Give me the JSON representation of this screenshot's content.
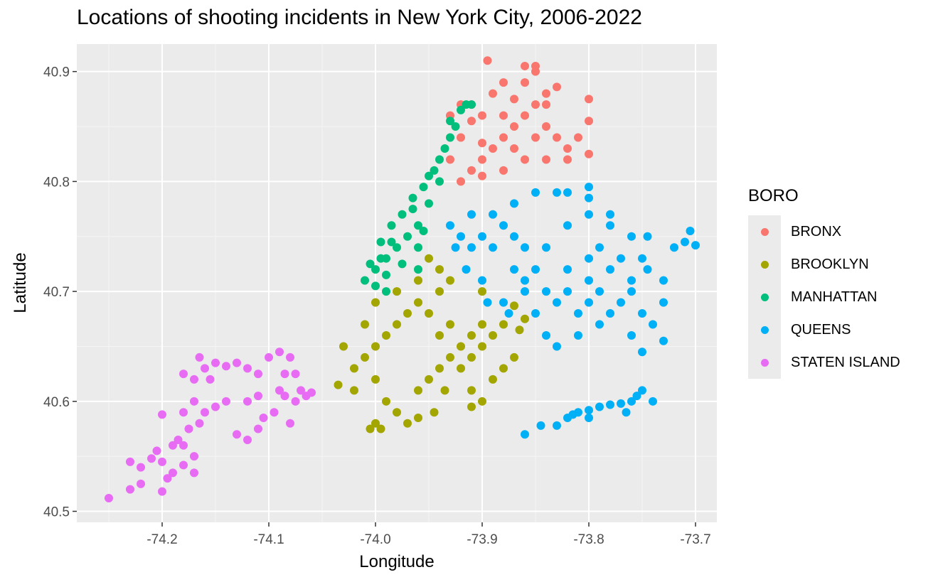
{
  "chart_data": {
    "type": "scatter",
    "title": "Locations of shooting incidents in New York City, 2006-2022",
    "xlabel": "Longitude",
    "ylabel": "Latitude",
    "xlim": [
      -74.28,
      -73.68
    ],
    "ylim": [
      40.49,
      40.925
    ],
    "x_ticks": [
      -74.2,
      -74.1,
      -74.0,
      -73.9,
      -73.8,
      -73.7
    ],
    "x_tick_labels": [
      "-74.2",
      "-74.1",
      "-74.0",
      "-73.9",
      "-73.8",
      "-73.7"
    ],
    "y_ticks": [
      40.5,
      40.6,
      40.7,
      40.8,
      40.9
    ],
    "y_tick_labels": [
      "40.5",
      "40.6",
      "40.7",
      "40.8",
      "40.9"
    ],
    "grid": true,
    "legend_title": "BORO",
    "legend_position": "right",
    "series": [
      {
        "name": "BRONX",
        "color": "#F8766D",
        "points": [
          [
            -73.91,
            40.81
          ],
          [
            -73.9,
            40.82
          ],
          [
            -73.89,
            40.83
          ],
          [
            -73.88,
            40.84
          ],
          [
            -73.87,
            40.85
          ],
          [
            -73.86,
            40.86
          ],
          [
            -73.85,
            40.87
          ],
          [
            -73.84,
            40.88
          ],
          [
            -73.85,
            40.9
          ],
          [
            -73.86,
            40.89
          ],
          [
            -73.9,
            40.86
          ],
          [
            -73.92,
            40.84
          ],
          [
            -73.93,
            40.82
          ],
          [
            -73.91,
            40.87
          ],
          [
            -73.89,
            40.88
          ],
          [
            -73.88,
            40.89
          ],
          [
            -73.84,
            40.85
          ],
          [
            -73.83,
            40.84
          ],
          [
            -73.82,
            40.83
          ],
          [
            -73.86,
            40.82
          ],
          [
            -73.88,
            40.81
          ],
          [
            -73.92,
            40.8
          ],
          [
            -73.9,
            40.805
          ],
          [
            -73.87,
            40.83
          ],
          [
            -73.85,
            40.84
          ],
          [
            -73.84,
            40.87
          ],
          [
            -73.86,
            40.905
          ],
          [
            -73.85,
            40.905
          ],
          [
            -73.895,
            40.91
          ],
          [
            -73.88,
            40.86
          ],
          [
            -73.91,
            40.855
          ],
          [
            -73.92,
            40.87
          ],
          [
            -73.93,
            40.86
          ],
          [
            -73.8,
            40.875
          ],
          [
            -73.8,
            40.855
          ],
          [
            -73.83,
            40.886
          ],
          [
            -73.81,
            40.84
          ],
          [
            -73.8,
            40.825
          ],
          [
            -73.82,
            40.82
          ],
          [
            -73.84,
            40.82
          ],
          [
            -73.87,
            40.875
          ],
          [
            -73.9,
            40.835
          ]
        ]
      },
      {
        "name": "BROOKLYN",
        "color": "#A3A500",
        "points": [
          [
            -73.95,
            40.68
          ],
          [
            -73.94,
            40.66
          ],
          [
            -73.93,
            40.67
          ],
          [
            -73.92,
            40.65
          ],
          [
            -73.91,
            40.66
          ],
          [
            -73.9,
            40.67
          ],
          [
            -73.89,
            40.66
          ],
          [
            -73.88,
            40.67
          ],
          [
            -73.96,
            40.69
          ],
          [
            -73.97,
            40.68
          ],
          [
            -73.98,
            40.67
          ],
          [
            -73.99,
            40.66
          ],
          [
            -74.0,
            40.65
          ],
          [
            -74.01,
            40.64
          ],
          [
            -74.02,
            40.63
          ],
          [
            -74.0,
            40.62
          ],
          [
            -73.99,
            40.6
          ],
          [
            -73.98,
            40.59
          ],
          [
            -73.97,
            40.58
          ],
          [
            -74.0,
            40.58
          ],
          [
            -73.96,
            40.61
          ],
          [
            -73.95,
            40.62
          ],
          [
            -73.94,
            40.63
          ],
          [
            -73.93,
            40.64
          ],
          [
            -73.92,
            40.63
          ],
          [
            -73.91,
            40.64
          ],
          [
            -73.9,
            40.65
          ],
          [
            -73.95,
            40.73
          ],
          [
            -73.94,
            40.72
          ],
          [
            -73.96,
            40.71
          ],
          [
            -73.98,
            40.7
          ],
          [
            -74.0,
            40.69
          ],
          [
            -74.01,
            40.67
          ],
          [
            -74.03,
            40.65
          ],
          [
            -74.035,
            40.615
          ],
          [
            -74.02,
            40.61
          ],
          [
            -74.005,
            40.575
          ],
          [
            -73.995,
            40.575
          ],
          [
            -73.96,
            40.585
          ],
          [
            -73.945,
            40.59
          ],
          [
            -73.935,
            40.61
          ],
          [
            -73.91,
            40.61
          ],
          [
            -73.89,
            40.62
          ],
          [
            -73.88,
            40.63
          ],
          [
            -73.87,
            40.64
          ],
          [
            -73.865,
            40.665
          ],
          [
            -73.86,
            40.675
          ],
          [
            -73.87,
            40.687
          ],
          [
            -73.9,
            40.7
          ],
          [
            -73.94,
            40.7
          ],
          [
            -73.93,
            40.71
          ],
          [
            -73.9,
            40.6
          ],
          [
            -73.91,
            40.595
          ]
        ]
      },
      {
        "name": "MANHATTAN",
        "color": "#00BF7D",
        "points": [
          [
            -74.01,
            40.71
          ],
          [
            -74.0,
            40.72
          ],
          [
            -73.99,
            40.73
          ],
          [
            -73.98,
            40.74
          ],
          [
            -73.97,
            40.75
          ],
          [
            -73.96,
            40.76
          ],
          [
            -73.95,
            40.78
          ],
          [
            -73.94,
            40.8
          ],
          [
            -73.945,
            40.81
          ],
          [
            -73.94,
            40.82
          ],
          [
            -73.935,
            40.83
          ],
          [
            -73.93,
            40.84
          ],
          [
            -73.925,
            40.85
          ],
          [
            -73.92,
            40.865
          ],
          [
            -73.91,
            40.87
          ],
          [
            -74.005,
            40.725
          ],
          [
            -73.995,
            40.745
          ],
          [
            -73.985,
            40.76
          ],
          [
            -73.975,
            40.77
          ],
          [
            -73.965,
            40.785
          ],
          [
            -73.955,
            40.795
          ],
          [
            -73.95,
            40.805
          ],
          [
            -73.93,
            40.855
          ],
          [
            -73.915,
            40.87
          ],
          [
            -74.0,
            40.705
          ],
          [
            -73.99,
            40.715
          ],
          [
            -73.975,
            40.725
          ],
          [
            -73.96,
            40.74
          ],
          [
            -73.955,
            40.755
          ],
          [
            -73.965,
            40.775
          ],
          [
            -73.985,
            40.745
          ],
          [
            -73.995,
            40.73
          ],
          [
            -73.99,
            40.7
          ],
          [
            -73.96,
            40.72
          ]
        ]
      },
      {
        "name": "QUEENS",
        "color": "#00B0F6",
        "points": [
          [
            -73.93,
            40.76
          ],
          [
            -73.92,
            40.75
          ],
          [
            -73.91,
            40.74
          ],
          [
            -73.9,
            40.75
          ],
          [
            -73.89,
            40.74
          ],
          [
            -73.88,
            40.76
          ],
          [
            -73.87,
            40.75
          ],
          [
            -73.86,
            40.74
          ],
          [
            -73.85,
            40.72
          ],
          [
            -73.84,
            40.7
          ],
          [
            -73.83,
            40.69
          ],
          [
            -73.82,
            40.7
          ],
          [
            -73.81,
            40.68
          ],
          [
            -73.8,
            40.69
          ],
          [
            -73.79,
            40.7
          ],
          [
            -73.78,
            40.68
          ],
          [
            -73.77,
            40.69
          ],
          [
            -73.76,
            40.7
          ],
          [
            -73.75,
            40.68
          ],
          [
            -73.74,
            40.67
          ],
          [
            -73.73,
            40.69
          ],
          [
            -73.73,
            40.71
          ],
          [
            -73.745,
            40.72
          ],
          [
            -73.76,
            40.71
          ],
          [
            -73.78,
            40.72
          ],
          [
            -73.8,
            40.71
          ],
          [
            -73.82,
            40.72
          ],
          [
            -73.84,
            40.74
          ],
          [
            -73.82,
            40.76
          ],
          [
            -73.8,
            40.77
          ],
          [
            -73.78,
            40.76
          ],
          [
            -73.76,
            40.75
          ],
          [
            -73.75,
            40.73
          ],
          [
            -73.83,
            40.79
          ],
          [
            -73.82,
            40.79
          ],
          [
            -73.8,
            40.795
          ],
          [
            -73.8,
            40.785
          ],
          [
            -73.85,
            40.79
          ],
          [
            -73.87,
            40.78
          ],
          [
            -73.89,
            40.77
          ],
          [
            -73.91,
            40.77
          ],
          [
            -73.88,
            40.69
          ],
          [
            -73.86,
            40.7
          ],
          [
            -73.85,
            40.68
          ],
          [
            -73.84,
            40.66
          ],
          [
            -73.83,
            40.65
          ],
          [
            -73.81,
            40.66
          ],
          [
            -73.79,
            40.67
          ],
          [
            -73.76,
            40.66
          ],
          [
            -73.75,
            40.645
          ],
          [
            -73.73,
            40.655
          ],
          [
            -73.71,
            40.745
          ],
          [
            -73.705,
            40.755
          ],
          [
            -73.7,
            40.742
          ],
          [
            -73.72,
            40.74
          ],
          [
            -73.745,
            40.75
          ],
          [
            -73.78,
            40.77
          ],
          [
            -73.86,
            40.57
          ],
          [
            -73.845,
            40.578
          ],
          [
            -73.83,
            40.578
          ],
          [
            -73.82,
            40.585
          ],
          [
            -73.81,
            40.59
          ],
          [
            -73.8,
            40.592
          ],
          [
            -73.79,
            40.595
          ],
          [
            -73.78,
            40.597
          ],
          [
            -73.77,
            40.598
          ],
          [
            -73.76,
            40.6
          ],
          [
            -73.755,
            40.605
          ],
          [
            -73.75,
            40.61
          ],
          [
            -73.74,
            40.6
          ],
          [
            -73.765,
            40.59
          ],
          [
            -73.8,
            40.585
          ],
          [
            -73.815,
            40.588
          ],
          [
            -73.925,
            40.74
          ],
          [
            -73.915,
            40.72
          ],
          [
            -73.9,
            40.71
          ],
          [
            -73.87,
            40.72
          ],
          [
            -73.86,
            40.71
          ],
          [
            -73.895,
            40.69
          ],
          [
            -73.875,
            40.68
          ],
          [
            -73.8,
            40.73
          ],
          [
            -73.79,
            40.74
          ],
          [
            -73.77,
            40.73
          ]
        ]
      },
      {
        "name": "STATEN ISLAND",
        "color": "#E76BF3",
        "points": [
          [
            -74.25,
            40.512
          ],
          [
            -74.23,
            40.52
          ],
          [
            -74.22,
            40.525
          ],
          [
            -74.2,
            40.518
          ],
          [
            -74.195,
            40.53
          ],
          [
            -74.19,
            40.535
          ],
          [
            -74.18,
            40.542
          ],
          [
            -74.17,
            40.535
          ],
          [
            -74.17,
            40.55
          ],
          [
            -74.18,
            40.56
          ],
          [
            -74.185,
            40.565
          ],
          [
            -74.19,
            40.56
          ],
          [
            -74.2,
            40.545
          ],
          [
            -74.205,
            40.555
          ],
          [
            -74.21,
            40.548
          ],
          [
            -74.22,
            40.54
          ],
          [
            -74.23,
            40.545
          ],
          [
            -74.2,
            40.588
          ],
          [
            -74.18,
            40.59
          ],
          [
            -74.17,
            40.6
          ],
          [
            -74.17,
            40.62
          ],
          [
            -74.16,
            40.63
          ],
          [
            -74.15,
            40.635
          ],
          [
            -74.14,
            40.632
          ],
          [
            -74.13,
            40.635
          ],
          [
            -74.12,
            40.63
          ],
          [
            -74.11,
            40.625
          ],
          [
            -74.1,
            40.64
          ],
          [
            -74.09,
            40.645
          ],
          [
            -74.08,
            40.64
          ],
          [
            -74.075,
            40.625
          ],
          [
            -74.07,
            40.61
          ],
          [
            -74.065,
            40.605
          ],
          [
            -74.075,
            40.6
          ],
          [
            -74.085,
            40.605
          ],
          [
            -74.095,
            40.59
          ],
          [
            -74.105,
            40.585
          ],
          [
            -74.11,
            40.575
          ],
          [
            -74.12,
            40.565
          ],
          [
            -74.13,
            40.57
          ],
          [
            -74.14,
            40.6
          ],
          [
            -74.15,
            40.595
          ],
          [
            -74.16,
            40.59
          ],
          [
            -74.175,
            40.575
          ],
          [
            -74.165,
            40.58
          ],
          [
            -74.18,
            40.625
          ],
          [
            -74.165,
            40.64
          ],
          [
            -74.155,
            40.62
          ],
          [
            -74.12,
            40.6
          ],
          [
            -74.11,
            40.605
          ],
          [
            -74.08,
            40.58
          ],
          [
            -74.09,
            40.61
          ],
          [
            -74.085,
            40.625
          ],
          [
            -74.06,
            40.608
          ]
        ]
      }
    ]
  }
}
